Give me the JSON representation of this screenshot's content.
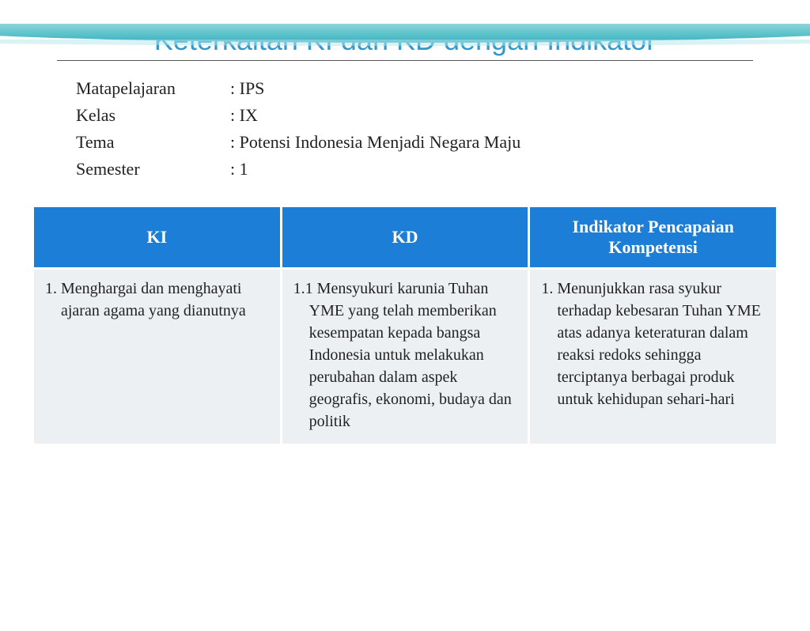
{
  "title": "Keterkaitan KI dan KD dengan Indikator",
  "info": {
    "rows": [
      {
        "label": "Matapelajaran",
        "value": ": IPS"
      },
      {
        "label": "Kelas",
        "value": ": IX"
      },
      {
        "label": "Tema",
        "value": ": Potensi Indonesia Menjadi Negara Maju"
      },
      {
        "label": "Semester",
        "value": ": 1"
      }
    ]
  },
  "table": {
    "header_bg": "#1c7ed6",
    "header_fg": "#ffffff",
    "cell_bg": "#edf0f2",
    "columns": [
      "KI",
      "KD",
      "Indikator Pencapaian Kompetensi"
    ],
    "rows": [
      {
        "ki": "1. Menghargai dan menghayati ajaran agama yang dianutnya",
        "kd": "1.1 Mensyukuri karunia Tuhan YME yang telah memberikan kesempatan kepada bangsa Indonesia untuk melakukan perubahan dalam aspek geografis, ekonomi, budaya dan politik",
        "indikator": "1. Menunjukkan rasa syukur terhadap kebesaran Tuhan YME atas adanya keteraturan dalam reaksi redoks sehingga terciptanya berbagai produk untuk kehidupan sehari-hari"
      }
    ]
  }
}
